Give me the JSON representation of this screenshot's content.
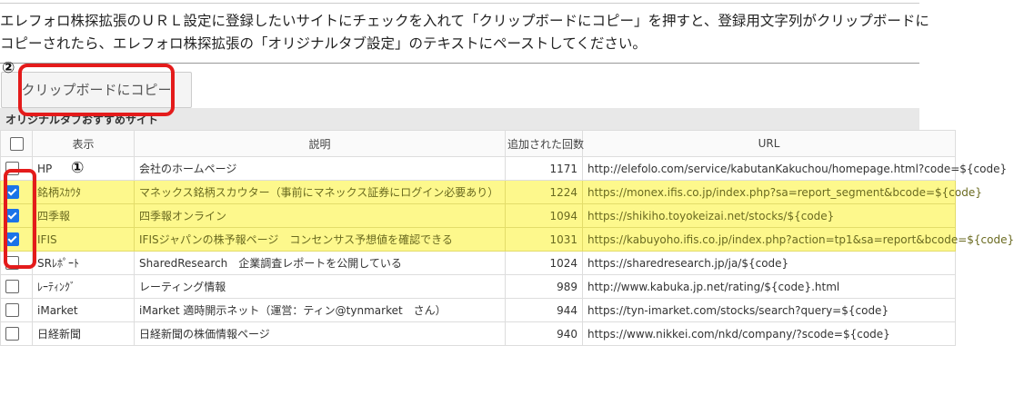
{
  "intro": {
    "line1": "エレフォロ株探拡張のＵＲＬ設定に登録したいサイトにチェックを入れて「クリップボードにコピー」を押すと、登録用文字列がクリップボードに",
    "line2": "コピーされたら、エレフォロ株探拡張の「オリジナルタブ設定」のテキストにペーストしてください。"
  },
  "copy_button": "クリップボードにコピー",
  "section_title": "オリジナルタブおすすめサイト",
  "annotations": {
    "step1": "①",
    "step2": "②",
    "color": "#e41b1b"
  },
  "table": {
    "headers": [
      "表示",
      "説明",
      "追加された回数",
      "URL"
    ],
    "rows": [
      {
        "checked": false,
        "label": "HP",
        "desc": "会社のホームページ",
        "count": "1171",
        "url": "http://elefolo.com/service/kabutanKakuchou/homepage.html?code=${code}"
      },
      {
        "checked": true,
        "label": "銘柄ｽｶｳﾀ",
        "desc": "マネックス銘柄スカウター（事前にマネックス証券にログイン必要あり）",
        "count": "1224",
        "url": "https://monex.ifis.co.jp/index.php?sa=report_segment&bcode=${code}"
      },
      {
        "checked": true,
        "label": "四季報",
        "desc": "四季報オンライン",
        "count": "1094",
        "url": "https://shikiho.toyokeizai.net/stocks/${code}"
      },
      {
        "checked": true,
        "label": "IFIS",
        "desc": "IFISジャパンの株予報ページ　コンセンサス予想値を確認できる",
        "count": "1031",
        "url": "https://kabuyoho.ifis.co.jp/index.php?action=tp1&sa=report&bcode=${code}"
      },
      {
        "checked": false,
        "label": "SRﾚﾎﾟｰﾄ",
        "desc": "SharedResearch　企業調査レポートを公開している",
        "count": "1024",
        "url": "https://sharedresearch.jp/ja/${code}"
      },
      {
        "checked": false,
        "label": "ﾚｰﾃｨﾝｸﾞ",
        "desc": "レーティング情報",
        "count": "989",
        "url": "http://www.kabuka.jp.net/rating/${code}.html"
      },
      {
        "checked": false,
        "label": "iMarket",
        "desc": "iMarket 適時開示ネット（運営：ティン@tynmarket　さん）",
        "count": "944",
        "url": "https://tyn-imarket.com/stocks/search?query=${code}"
      },
      {
        "checked": false,
        "label": "日経新聞",
        "desc": "日経新聞の株価情報ページ",
        "count": "940",
        "url": "https://www.nikkei.com/nkd/company/?scode=${code}"
      }
    ]
  }
}
